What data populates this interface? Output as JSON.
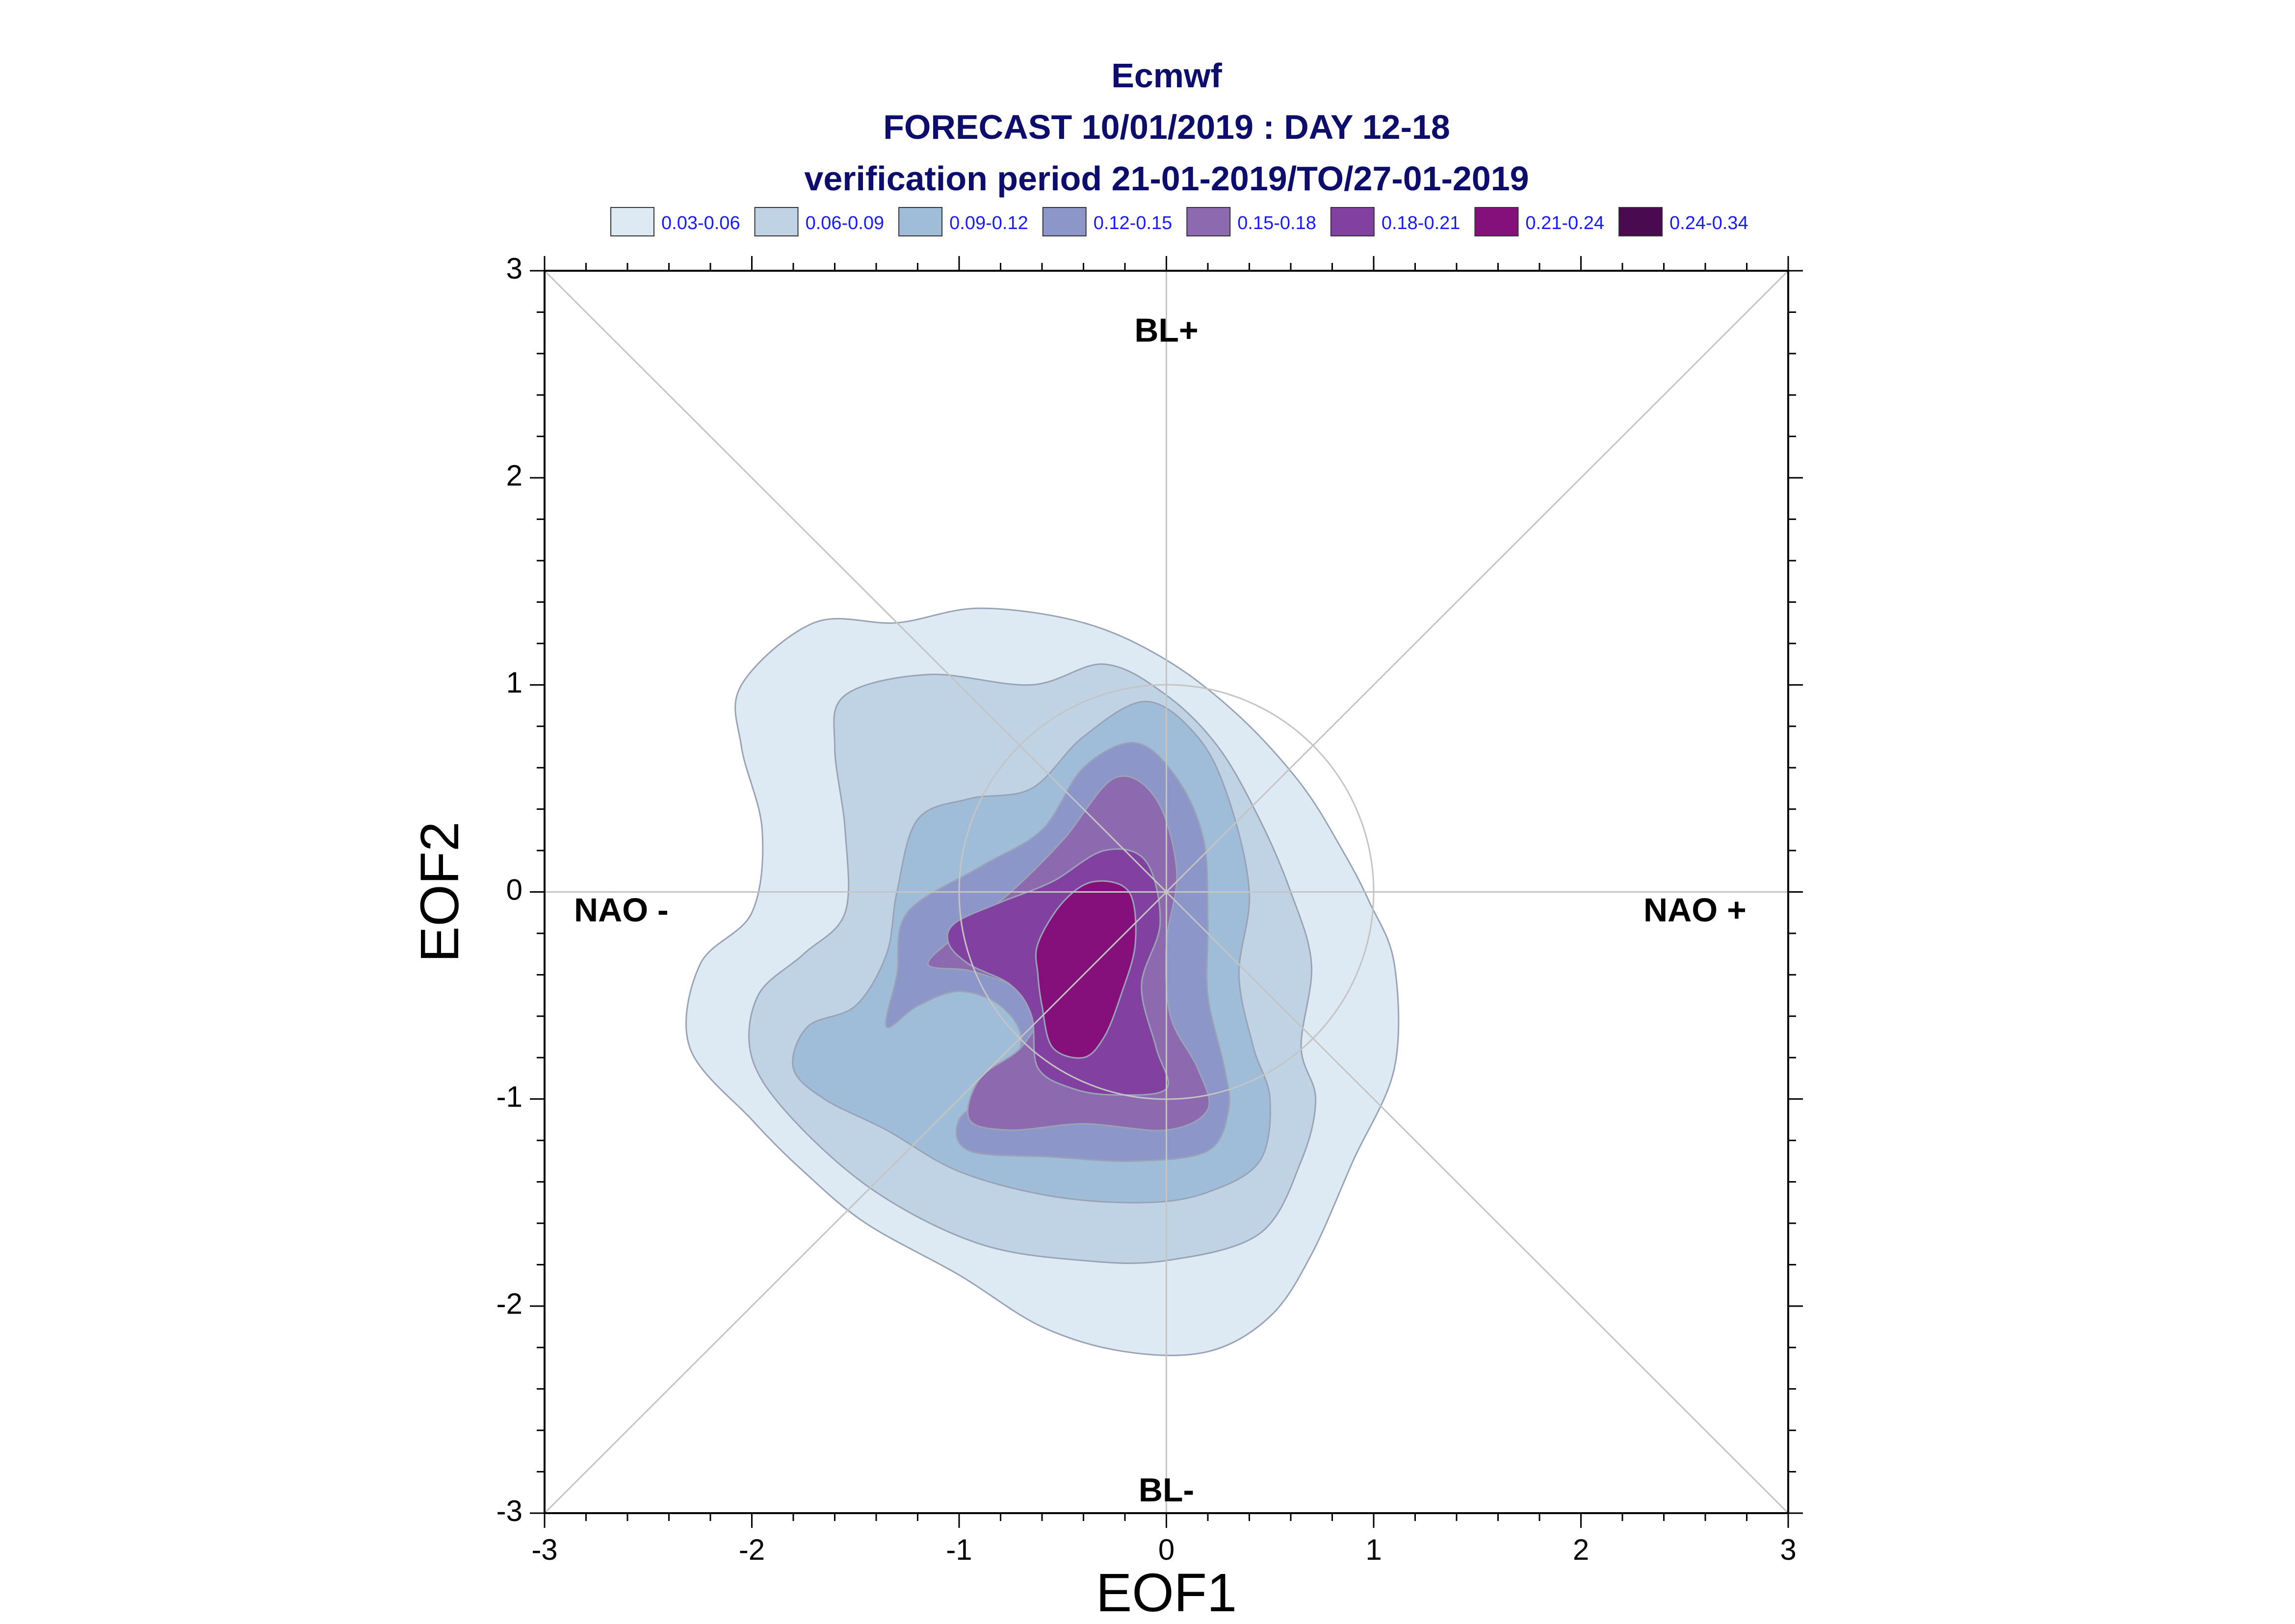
{
  "chart_data": {
    "type": "contour",
    "title_lines": [
      "Ecmwf",
      "FORECAST 10/01/2019 : DAY 12-18",
      "verification period 21-01-2019/TO/27-01-2019"
    ],
    "title_color": "#0d0d6b",
    "xlabel": "EOF1",
    "ylabel": "EOF2",
    "xlim": [
      -3,
      3
    ],
    "ylim": [
      -3,
      3
    ],
    "xticks": [
      -3,
      -2,
      -1,
      0,
      1,
      2,
      3
    ],
    "yticks": [
      -3,
      -2,
      -1,
      0,
      1,
      2,
      3
    ],
    "grid": false,
    "legend": {
      "placement": "top",
      "label_color": "#1a1aff",
      "entries": [
        {
          "label": "0.03-0.06",
          "color": "#deeaf3"
        },
        {
          "label": "0.06-0.09",
          "color": "#bfd3e4"
        },
        {
          "label": "0.09-0.12",
          "color": "#9fbdd9"
        },
        {
          "label": "0.12-0.15",
          "color": "#8c96c8"
        },
        {
          "label": "0.15-0.18",
          "color": "#8d6ab0"
        },
        {
          "label": "0.18-0.21",
          "color": "#8240a0"
        },
        {
          "label": "0.21-0.24",
          "color": "#85107c"
        },
        {
          "label": "0.24-0.34",
          "color": "#4a0a4f"
        }
      ]
    },
    "region_labels": [
      {
        "text": "BL+",
        "x": 0,
        "y": 2.7
      },
      {
        "text": "BL-",
        "x": 0,
        "y": -2.9
      },
      {
        "text": "NAO -",
        "x": -2.63,
        "y": -0.1
      },
      {
        "text": "NAO +",
        "x": 2.55,
        "y": -0.1
      }
    ],
    "reference_circle": {
      "cx": 0,
      "cy": 0,
      "r": 1
    },
    "contours": [
      {
        "level": "0.03-0.06",
        "points": [
          [
            -1.3,
            1.3
          ],
          [
            -0.9,
            1.37
          ],
          [
            -0.4,
            1.3
          ],
          [
            0.0,
            1.12
          ],
          [
            0.35,
            0.85
          ],
          [
            0.65,
            0.52
          ],
          [
            0.85,
            0.2
          ],
          [
            0.98,
            -0.05
          ],
          [
            1.1,
            -0.35
          ],
          [
            1.1,
            -0.85
          ],
          [
            0.9,
            -1.3
          ],
          [
            0.7,
            -1.75
          ],
          [
            0.5,
            -2.05
          ],
          [
            0.2,
            -2.22
          ],
          [
            -0.2,
            -2.22
          ],
          [
            -0.6,
            -2.1
          ],
          [
            -1.0,
            -1.85
          ],
          [
            -1.45,
            -1.6
          ],
          [
            -1.75,
            -1.35
          ],
          [
            -2.0,
            -1.1
          ],
          [
            -2.3,
            -0.75
          ],
          [
            -2.25,
            -0.35
          ],
          [
            -2.0,
            -0.1
          ],
          [
            -1.95,
            0.3
          ],
          [
            -2.05,
            0.7
          ],
          [
            -2.05,
            1.0
          ],
          [
            -1.7,
            1.3
          ]
        ]
      },
      {
        "level": "0.06-0.09",
        "points": [
          [
            -1.55,
            0.95
          ],
          [
            -1.15,
            1.05
          ],
          [
            -0.65,
            1.0
          ],
          [
            -0.3,
            1.1
          ],
          [
            0.0,
            0.95
          ],
          [
            0.25,
            0.7
          ],
          [
            0.45,
            0.35
          ],
          [
            0.6,
            0.0
          ],
          [
            0.7,
            -0.35
          ],
          [
            0.65,
            -0.75
          ],
          [
            0.72,
            -1.0
          ],
          [
            0.65,
            -1.3
          ],
          [
            0.45,
            -1.65
          ],
          [
            0.0,
            -1.78
          ],
          [
            -0.4,
            -1.78
          ],
          [
            -0.9,
            -1.7
          ],
          [
            -1.4,
            -1.45
          ],
          [
            -1.8,
            -1.1
          ],
          [
            -2.0,
            -0.8
          ],
          [
            -1.97,
            -0.5
          ],
          [
            -1.75,
            -0.3
          ],
          [
            -1.55,
            -0.1
          ],
          [
            -1.55,
            0.3
          ],
          [
            -1.6,
            0.7
          ]
        ]
      },
      {
        "level": "0.09-0.12",
        "points": [
          [
            -0.95,
            0.45
          ],
          [
            -0.65,
            0.5
          ],
          [
            -0.4,
            0.75
          ],
          [
            -0.1,
            0.92
          ],
          [
            0.15,
            0.75
          ],
          [
            0.3,
            0.45
          ],
          [
            0.4,
            0.0
          ],
          [
            0.35,
            -0.4
          ],
          [
            0.42,
            -0.75
          ],
          [
            0.5,
            -1.0
          ],
          [
            0.45,
            -1.3
          ],
          [
            0.2,
            -1.45
          ],
          [
            -0.1,
            -1.5
          ],
          [
            -0.55,
            -1.47
          ],
          [
            -1.0,
            -1.35
          ],
          [
            -1.35,
            -1.15
          ],
          [
            -1.65,
            -1.0
          ],
          [
            -1.8,
            -0.85
          ],
          [
            -1.73,
            -0.65
          ],
          [
            -1.5,
            -0.55
          ],
          [
            -1.35,
            -0.3
          ],
          [
            -1.3,
            0.0
          ],
          [
            -1.2,
            0.35
          ]
        ]
      },
      {
        "level": "0.12-0.15",
        "points": [
          [
            -0.9,
            0.12
          ],
          [
            -0.6,
            0.3
          ],
          [
            -0.4,
            0.6
          ],
          [
            -0.15,
            0.72
          ],
          [
            0.05,
            0.55
          ],
          [
            0.18,
            0.25
          ],
          [
            0.2,
            -0.15
          ],
          [
            0.2,
            -0.5
          ],
          [
            0.28,
            -0.85
          ],
          [
            0.3,
            -1.05
          ],
          [
            0.2,
            -1.25
          ],
          [
            -0.15,
            -1.3
          ],
          [
            -0.55,
            -1.28
          ],
          [
            -0.95,
            -1.25
          ],
          [
            -1.0,
            -1.1
          ],
          [
            -0.82,
            -0.95
          ],
          [
            -0.7,
            -0.72
          ],
          [
            -0.8,
            -0.55
          ],
          [
            -1.0,
            -0.48
          ],
          [
            -1.2,
            -0.55
          ],
          [
            -1.35,
            -0.65
          ],
          [
            -1.3,
            -0.4
          ],
          [
            -1.25,
            -0.1
          ]
        ]
      },
      {
        "level": "0.15-0.18",
        "points": [
          [
            -1.0,
            -0.2
          ],
          [
            -0.75,
            0.0
          ],
          [
            -0.5,
            0.25
          ],
          [
            -0.25,
            0.55
          ],
          [
            -0.05,
            0.45
          ],
          [
            0.05,
            0.1
          ],
          [
            0.0,
            -0.25
          ],
          [
            0.02,
            -0.6
          ],
          [
            0.15,
            -0.85
          ],
          [
            0.2,
            -1.05
          ],
          [
            0.0,
            -1.15
          ],
          [
            -0.4,
            -1.12
          ],
          [
            -0.75,
            -1.15
          ],
          [
            -0.95,
            -1.1
          ],
          [
            -0.9,
            -0.9
          ],
          [
            -0.7,
            -0.75
          ],
          [
            -0.6,
            -0.55
          ],
          [
            -0.75,
            -0.45
          ],
          [
            -0.95,
            -0.38
          ],
          [
            -1.15,
            -0.35
          ]
        ]
      },
      {
        "level": "0.18-0.21",
        "points": [
          [
            -1.02,
            -0.15
          ],
          [
            -0.8,
            -0.05
          ],
          [
            -0.55,
            0.05
          ],
          [
            -0.3,
            0.2
          ],
          [
            -0.1,
            0.15
          ],
          [
            -0.03,
            -0.15
          ],
          [
            -0.12,
            -0.45
          ],
          [
            -0.05,
            -0.75
          ],
          [
            0.0,
            -0.95
          ],
          [
            -0.25,
            -0.98
          ],
          [
            -0.45,
            -0.95
          ],
          [
            -0.62,
            -0.85
          ],
          [
            -0.65,
            -0.6
          ],
          [
            -0.75,
            -0.45
          ],
          [
            -0.95,
            -0.35
          ],
          [
            -1.05,
            -0.25
          ]
        ]
      },
      {
        "level": "0.21-0.24",
        "points": [
          [
            -0.62,
            -0.25
          ],
          [
            -0.5,
            -0.05
          ],
          [
            -0.35,
            0.05
          ],
          [
            -0.18,
            0.0
          ],
          [
            -0.15,
            -0.25
          ],
          [
            -0.22,
            -0.5
          ],
          [
            -0.3,
            -0.7
          ],
          [
            -0.4,
            -0.8
          ],
          [
            -0.55,
            -0.75
          ],
          [
            -0.6,
            -0.55
          ],
          [
            -0.62,
            -0.4
          ]
        ]
      }
    ]
  }
}
